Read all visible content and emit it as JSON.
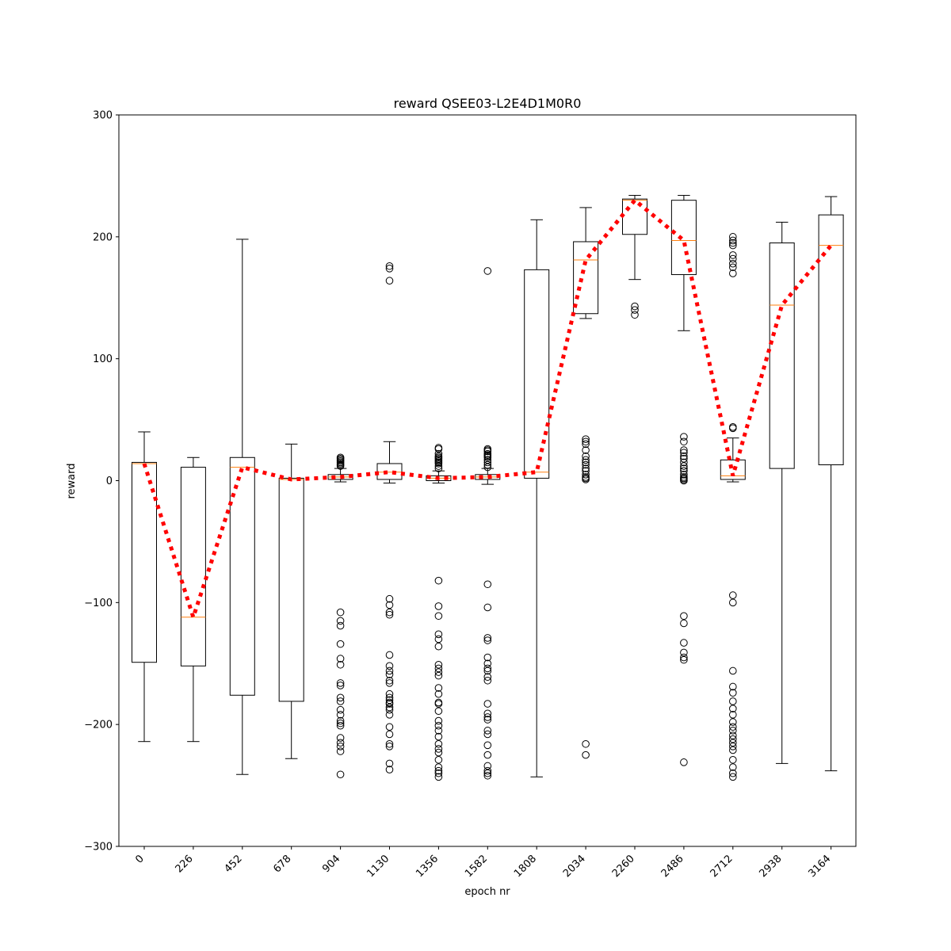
{
  "chart_data": {
    "type": "boxplot",
    "title": "reward QSEE03-L2E4D1M0R0",
    "xlabel": "epoch nr",
    "ylabel": "reward",
    "ylim": [
      -300,
      300
    ],
    "yticks": [
      -300,
      -200,
      -100,
      0,
      100,
      200,
      300
    ],
    "yticklabels": [
      "−300",
      "−200",
      "−100",
      "0",
      "100",
      "200",
      "300"
    ],
    "grid": false,
    "categories": [
      "0",
      "226",
      "452",
      "678",
      "904",
      "1130",
      "1356",
      "1582",
      "1808",
      "2034",
      "2260",
      "2486",
      "2712",
      "2938",
      "3164"
    ],
    "boxes": [
      {
        "whislo": -214,
        "q1": -149,
        "med": 14,
        "q3": 15,
        "whishi": 40,
        "fliers": []
      },
      {
        "whislo": -214,
        "q1": -152,
        "med": -112,
        "q3": 11,
        "whishi": 19,
        "fliers": []
      },
      {
        "whislo": -241,
        "q1": -176,
        "med": 11,
        "q3": 19,
        "whishi": 198,
        "fliers": []
      },
      {
        "whislo": -228,
        "q1": -181,
        "med": 1,
        "q3": 2,
        "whishi": 30,
        "fliers": []
      },
      {
        "whislo": -1,
        "q1": 1,
        "med": 3,
        "q3": 5,
        "whishi": 10,
        "fliers": [
          12,
          13,
          14,
          15,
          16,
          17,
          18,
          19,
          -108,
          -115,
          -119,
          -134,
          -146,
          -151,
          -166,
          -168,
          -178,
          -181,
          -188,
          -192,
          -197,
          -199,
          -201,
          -211,
          -215,
          -218,
          -222,
          -241
        ]
      },
      {
        "whislo": -2,
        "q1": 1,
        "med": 7,
        "q3": 14,
        "whishi": 32,
        "fliers": [
          176,
          174,
          164,
          -97,
          -102,
          -108,
          -110,
          -143,
          -152,
          -156,
          -159,
          -164,
          -166,
          -175,
          -178,
          -180,
          -182,
          -183,
          -186,
          -188,
          -192,
          -202,
          -208,
          -216,
          -218,
          -232,
          -237
        ]
      },
      {
        "whislo": -2,
        "q1": 0,
        "med": 2,
        "q3": 4,
        "whishi": 8,
        "fliers": [
          10,
          12,
          14,
          15,
          16,
          17,
          18,
          19,
          20,
          22,
          26,
          27,
          -82,
          -103,
          -111,
          -126,
          -130,
          -136,
          -151,
          -154,
          -157,
          -160,
          -170,
          -175,
          -182,
          -183,
          -189,
          -197,
          -201,
          -205,
          -210,
          -216,
          -220,
          -223,
          -229,
          -235,
          -238,
          -240,
          -243
        ]
      },
      {
        "whislo": -3,
        "q1": 1,
        "med": 3,
        "q3": 5,
        "whishi": 10,
        "fliers": [
          11,
          13,
          15,
          17,
          19,
          20,
          21,
          22,
          24,
          25,
          26,
          172,
          -85,
          -104,
          -129,
          -131,
          -145,
          -150,
          -154,
          -156,
          -161,
          -164,
          -183,
          -191,
          -194,
          -196,
          -205,
          -208,
          -217,
          -225,
          -234,
          -238,
          -240,
          -242
        ]
      },
      {
        "whislo": -243,
        "q1": 2,
        "med": 7,
        "q3": 173,
        "whishi": 214,
        "fliers": []
      },
      {
        "whislo": 133,
        "q1": 137,
        "med": 181,
        "q3": 196,
        "whishi": 224,
        "fliers": [
          1,
          2,
          3,
          5,
          8,
          10,
          13,
          15,
          17,
          20,
          25,
          30,
          32,
          34,
          -216,
          -225
        ]
      },
      {
        "whislo": 165,
        "q1": 202,
        "med": 230,
        "q3": 231,
        "whishi": 234,
        "fliers": [
          143,
          140,
          136
        ]
      },
      {
        "whislo": 123,
        "q1": 169,
        "med": 197,
        "q3": 230,
        "whishi": 234,
        "fliers": [
          0,
          1,
          2,
          3,
          5,
          8,
          10,
          12,
          15,
          18,
          20,
          23,
          25,
          32,
          36,
          -111,
          -117,
          -133,
          -141,
          -145,
          -147,
          -231
        ]
      },
      {
        "whislo": -1,
        "q1": 1,
        "med": 4,
        "q3": 17,
        "whishi": 35,
        "fliers": [
          43,
          44,
          170,
          175,
          178,
          182,
          185,
          193,
          195,
          197,
          200,
          -94,
          -100,
          -156,
          -169,
          -174,
          -181,
          -187,
          -192,
          -198,
          -202,
          -205,
          -209,
          -212,
          -215,
          -218,
          -221,
          -229,
          -235,
          -240,
          -243
        ]
      },
      {
        "whislo": -232,
        "q1": 10,
        "med": 144,
        "q3": 195,
        "whishi": 212,
        "fliers": []
      },
      {
        "whislo": -238,
        "q1": 13,
        "med": 193,
        "q3": 218,
        "whishi": 233,
        "fliers": []
      }
    ],
    "mean_line": {
      "values": [
        14,
        -112,
        11,
        1,
        3,
        7,
        2,
        3,
        7,
        181,
        230,
        197,
        4,
        144,
        193
      ],
      "color": "#ff0000",
      "style": "dotted"
    },
    "colors": {
      "box": "#000000",
      "median": "#ff7f0e",
      "flier": "#000000"
    }
  }
}
